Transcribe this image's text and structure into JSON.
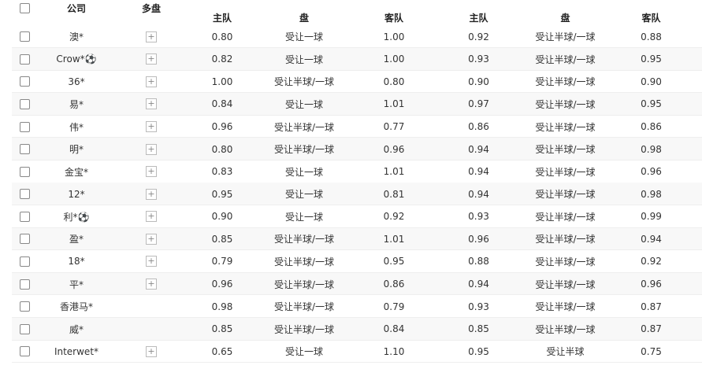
{
  "header": {
    "company": "公司",
    "multi": "多盘",
    "columns": [
      "主队",
      "盘",
      "客队",
      "主队",
      "盘",
      "客队"
    ]
  },
  "rows": [
    {
      "company": "澳*",
      "multi": true,
      "cells": [
        "0.80",
        "受让一球",
        "1.00",
        "0.92",
        "受让半球/一球",
        "0.88"
      ]
    },
    {
      "company": "Crow*⚽",
      "multi": true,
      "cells": [
        "0.82",
        "受让一球",
        "1.00",
        "0.93",
        "受让半球/一球",
        "0.95"
      ]
    },
    {
      "company": "36*",
      "multi": true,
      "cells": [
        "1.00",
        "受让半球/一球",
        "0.80",
        "0.90",
        "受让半球/一球",
        "0.90"
      ]
    },
    {
      "company": "易*",
      "multi": true,
      "cells": [
        "0.84",
        "受让一球",
        "1.01",
        "0.97",
        "受让半球/一球",
        "0.95"
      ]
    },
    {
      "company": "伟*",
      "multi": true,
      "cells": [
        "0.96",
        "受让半球/一球",
        "0.77",
        "0.86",
        "受让半球/一球",
        "0.86"
      ]
    },
    {
      "company": "明*",
      "multi": true,
      "cells": [
        "0.80",
        "受让半球/一球",
        "0.96",
        "0.94",
        "受让半球/一球",
        "0.98"
      ]
    },
    {
      "company": "金宝*",
      "multi": true,
      "cells": [
        "0.83",
        "受让一球",
        "1.01",
        "0.94",
        "受让半球/一球",
        "0.96"
      ]
    },
    {
      "company": "12*",
      "multi": true,
      "cells": [
        "0.95",
        "受让一球",
        "0.81",
        "0.94",
        "受让半球/一球",
        "0.98"
      ]
    },
    {
      "company": "利*⚽",
      "multi": true,
      "cells": [
        "0.90",
        "受让一球",
        "0.92",
        "0.93",
        "受让半球/一球",
        "0.99"
      ]
    },
    {
      "company": "盈*",
      "multi": true,
      "cells": [
        "0.85",
        "受让半球/一球",
        "1.01",
        "0.96",
        "受让半球/一球",
        "0.94"
      ]
    },
    {
      "company": "18*",
      "multi": true,
      "cells": [
        "0.79",
        "受让半球/一球",
        "0.95",
        "0.88",
        "受让半球/一球",
        "0.92"
      ]
    },
    {
      "company": "平*",
      "multi": true,
      "cells": [
        "0.96",
        "受让半球/一球",
        "0.86",
        "0.94",
        "受让半球/一球",
        "0.96"
      ]
    },
    {
      "company": "香港马*",
      "multi": false,
      "cells": [
        "0.98",
        "受让半球/一球",
        "0.79",
        "0.93",
        "受让半球/一球",
        "0.87"
      ]
    },
    {
      "company": "威*",
      "multi": false,
      "cells": [
        "0.85",
        "受让半球/一球",
        "0.84",
        "0.85",
        "受让半球/一球",
        "0.87"
      ]
    },
    {
      "company": "Interwet*",
      "multi": true,
      "cells": [
        "0.65",
        "受让一球",
        "1.10",
        "0.95",
        "受让半球",
        "0.75"
      ]
    }
  ]
}
